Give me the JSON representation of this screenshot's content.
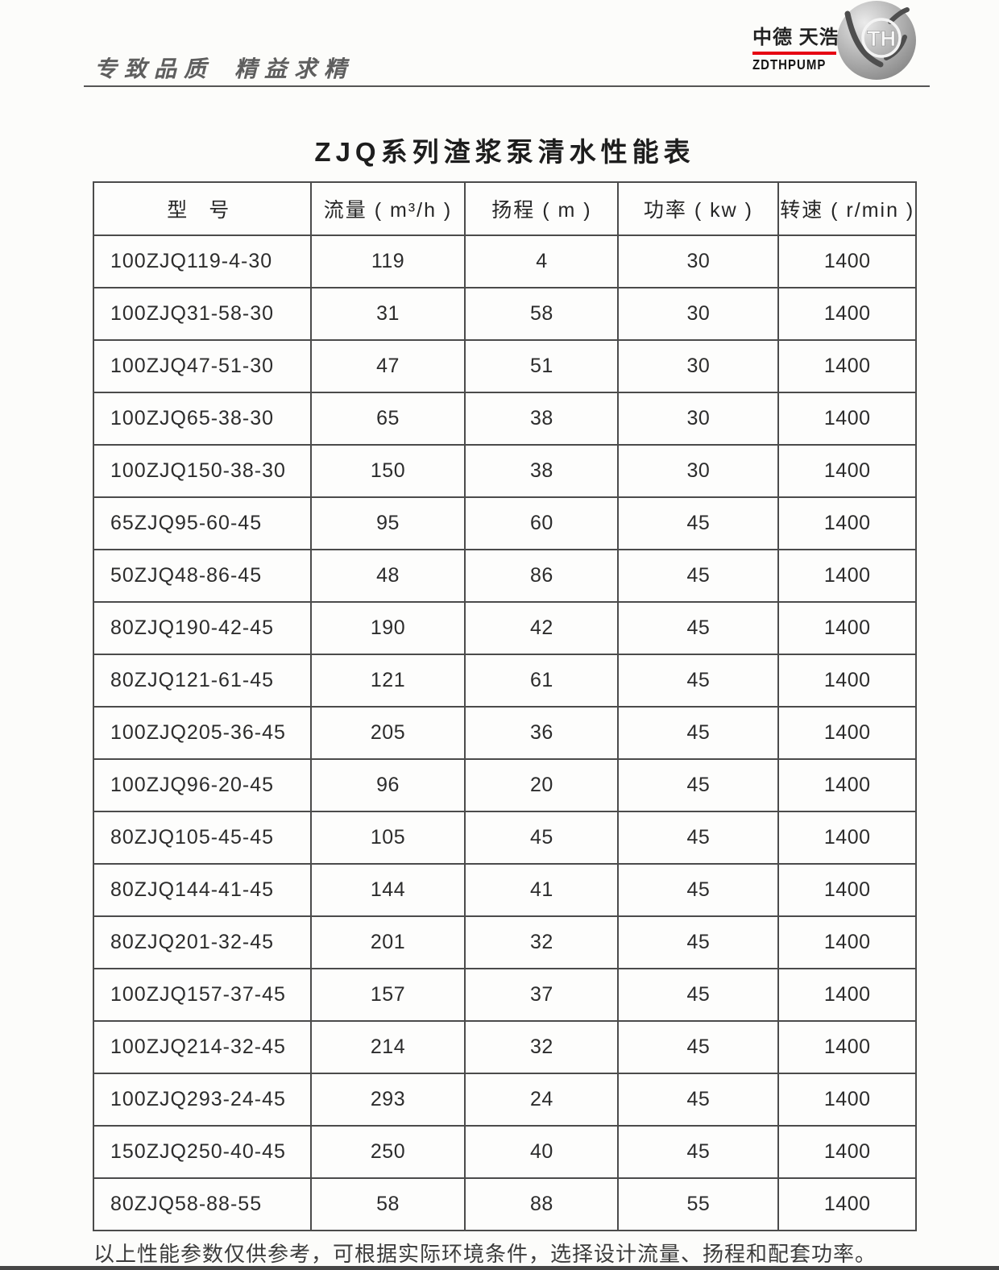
{
  "page": {
    "slogan_part1": "专致品质",
    "slogan_part2": "精益求精",
    "footer_note": "以上性能参数仅供参考，可根据实际环境条件，选择设计流量、扬程和配套功率。"
  },
  "brand": {
    "name_cn": "中德 天浩",
    "name_en": "ZDTHPUMP",
    "monogram": "TH",
    "accent_red": "#e60012"
  },
  "table": {
    "title": "ZJQ系列渣浆泵清水性能表",
    "columns": [
      "型  号",
      "流量 ( m³/h )",
      "扬程 ( m )",
      "功率 ( kw )",
      "转速 ( r/min )"
    ],
    "rows": [
      [
        "100ZJQ119-4-30",
        "119",
        "4",
        "30",
        "1400"
      ],
      [
        "100ZJQ31-58-30",
        "31",
        "58",
        "30",
        "1400"
      ],
      [
        "100ZJQ47-51-30",
        "47",
        "51",
        "30",
        "1400"
      ],
      [
        "100ZJQ65-38-30",
        "65",
        "38",
        "30",
        "1400"
      ],
      [
        "100ZJQ150-38-30",
        "150",
        "38",
        "30",
        "1400"
      ],
      [
        "65ZJQ95-60-45",
        "95",
        "60",
        "45",
        "1400"
      ],
      [
        "50ZJQ48-86-45",
        "48",
        "86",
        "45",
        "1400"
      ],
      [
        "80ZJQ190-42-45",
        "190",
        "42",
        "45",
        "1400"
      ],
      [
        "80ZJQ121-61-45",
        "121",
        "61",
        "45",
        "1400"
      ],
      [
        "100ZJQ205-36-45",
        "205",
        "36",
        "45",
        "1400"
      ],
      [
        "100ZJQ96-20-45",
        "96",
        "20",
        "45",
        "1400"
      ],
      [
        "80ZJQ105-45-45",
        "105",
        "45",
        "45",
        "1400"
      ],
      [
        "80ZJQ144-41-45",
        "144",
        "41",
        "45",
        "1400"
      ],
      [
        "80ZJQ201-32-45",
        "201",
        "32",
        "45",
        "1400"
      ],
      [
        "100ZJQ157-37-45",
        "157",
        "37",
        "45",
        "1400"
      ],
      [
        "100ZJQ214-32-45",
        "214",
        "32",
        "45",
        "1400"
      ],
      [
        "100ZJQ293-24-45",
        "293",
        "24",
        "45",
        "1400"
      ],
      [
        "150ZJQ250-40-45",
        "250",
        "40",
        "45",
        "1400"
      ],
      [
        "80ZJQ58-88-55",
        "58",
        "88",
        "55",
        "1400"
      ]
    ]
  }
}
